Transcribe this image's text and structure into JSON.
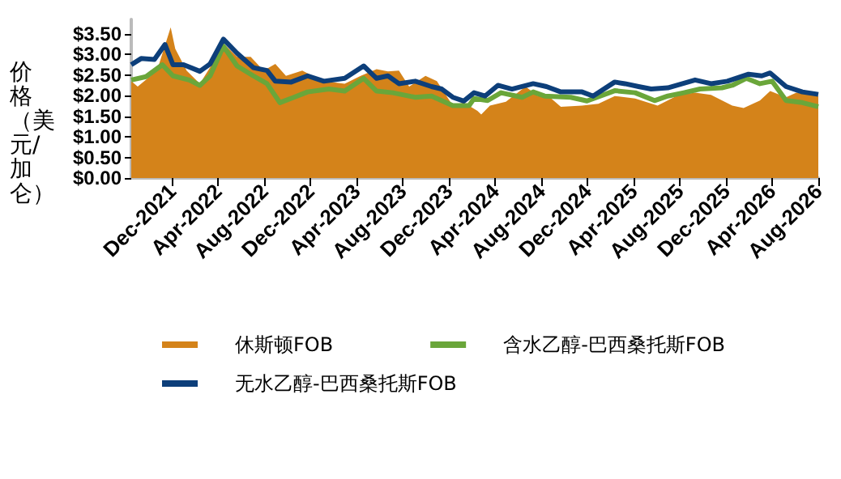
{
  "chart_data": {
    "type": "line",
    "ylabel": "价格（美元/加仑）",
    "xlim": [
      "2021-08-15",
      "2026-08-01"
    ],
    "ylim": [
      0,
      3.85
    ],
    "yticks": [
      {
        "value": 0,
        "label": "$0.00"
      },
      {
        "value": 0.5,
        "label": "$0.50"
      },
      {
        "value": 1,
        "label": "$1.00"
      },
      {
        "value": 1.5,
        "label": "$1.50"
      },
      {
        "value": 2,
        "label": "$2.00"
      },
      {
        "value": 2.5,
        "label": "$2.50"
      },
      {
        "value": 3,
        "label": "$3.00"
      },
      {
        "value": 3.5,
        "label": "$3.50"
      }
    ],
    "xticks": [
      {
        "value": "2021-12-01",
        "label": "Dec-2021"
      },
      {
        "value": "2022-04-01",
        "label": "Apr-2022"
      },
      {
        "value": "2022-08-01",
        "label": "Aug-2022"
      },
      {
        "value": "2022-12-01",
        "label": "Dec-2022"
      },
      {
        "value": "2023-04-01",
        "label": "Apr-2023"
      },
      {
        "value": "2023-08-01",
        "label": "Aug-2023"
      },
      {
        "value": "2023-12-01",
        "label": "Dec-2023"
      },
      {
        "value": "2024-04-01",
        "label": "Apr-2024"
      },
      {
        "value": "2024-08-01",
        "label": "Aug-2024"
      },
      {
        "value": "2024-12-01",
        "label": "Dec-2024"
      },
      {
        "value": "2025-04-01",
        "label": "Apr-2025"
      },
      {
        "value": "2025-08-01",
        "label": "Aug-2025"
      },
      {
        "value": "2025-12-01",
        "label": "Dec-2025"
      },
      {
        "value": "2026-04-01",
        "label": "Apr-2026"
      },
      {
        "value": "2026-08-01",
        "label": "Aug-2026"
      }
    ],
    "grid": false,
    "legend": "bottom",
    "marker": "none",
    "line_style": "solid",
    "series": [
      {
        "name": "休斯顿FOB",
        "type": "area",
        "color": "#d4831a",
        "x": [
          "2021-08-15",
          "2021-09-01",
          "2021-10-22",
          "2021-11-27",
          "2021-12-09",
          "2022-01-08",
          "2022-02-12",
          "2022-03-24",
          "2022-04-15",
          "2022-05-21",
          "2022-06-26",
          "2022-07-30",
          "2022-08-30",
          "2022-09-27",
          "2022-11-09",
          "2022-12-06",
          "2023-01-05",
          "2023-03-01",
          "2023-04-12",
          "2023-05-24",
          "2023-06-23",
          "2023-07-22",
          "2023-08-18",
          "2023-09-30",
          "2023-10-30",
          "2023-12-11",
          "2024-01-09",
          "2024-02-14",
          "2024-02-24",
          "2024-03-18",
          "2024-04-29",
          "2024-06-20",
          "2024-07-23",
          "2024-08-23",
          "2024-09-21",
          "2024-11-16",
          "2024-12-29",
          "2025-02-10",
          "2025-04-05",
          "2025-06-03",
          "2025-07-29",
          "2025-09-10",
          "2025-10-22",
          "2025-12-17",
          "2026-01-16",
          "2026-02-28",
          "2026-03-27",
          "2026-05-08",
          "2026-06-04",
          "2026-08-01"
        ],
        "values": [
          2.35,
          2.22,
          2.61,
          3.66,
          3.14,
          2.61,
          2.29,
          2.88,
          3.27,
          2.94,
          2.94,
          2.61,
          2.77,
          2.48,
          2.61,
          2.48,
          2.35,
          2.29,
          2.48,
          2.64,
          2.59,
          2.61,
          2.22,
          2.48,
          2.35,
          1.76,
          1.83,
          1.63,
          1.54,
          1.76,
          1.85,
          2.22,
          1.99,
          1.96,
          1.73,
          1.76,
          1.8,
          1.99,
          1.93,
          1.76,
          2.02,
          2.07,
          2.02,
          1.76,
          1.7,
          1.88,
          2.11,
          1.96,
          2.07,
          1.99
        ]
      },
      {
        "name": "含水乙醇-巴西桑托斯FOB",
        "color": "#6aa63a",
        "x": [
          "2021-08-15",
          "2021-09-23",
          "2021-11-05",
          "2021-12-03",
          "2022-01-15",
          "2022-02-12",
          "2022-03-11",
          "2022-04-15",
          "2022-05-21",
          "2022-07-03",
          "2022-08-08",
          "2022-09-11",
          "2022-10-18",
          "2022-11-23",
          "2023-01-18",
          "2023-03-01",
          "2023-04-20",
          "2023-05-24",
          "2023-07-06",
          "2023-09-03",
          "2023-10-16",
          "2023-12-11",
          "2024-01-23",
          "2024-02-05",
          "2024-03-12",
          "2024-04-16",
          "2024-06-11",
          "2024-07-10",
          "2024-08-09",
          "2024-10-17",
          "2024-11-29",
          "2025-02-10",
          "2025-04-05",
          "2025-05-26",
          "2025-06-30",
          "2025-08-11",
          "2025-09-23",
          "2025-11-20",
          "2025-12-17",
          "2026-01-23",
          "2026-02-28",
          "2026-04-01",
          "2026-05-08",
          "2026-06-20",
          "2026-08-01"
        ],
        "values": [
          2.38,
          2.46,
          2.75,
          2.48,
          2.38,
          2.25,
          2.48,
          3.2,
          2.72,
          2.48,
          2.29,
          1.83,
          1.96,
          2.09,
          2.16,
          2.11,
          2.42,
          2.11,
          2.07,
          1.96,
          1.99,
          1.76,
          1.76,
          1.93,
          1.88,
          2.07,
          1.96,
          2.09,
          1.99,
          1.96,
          1.87,
          2.12,
          2.07,
          1.88,
          1.99,
          2.07,
          2.16,
          2.19,
          2.25,
          2.42,
          2.29,
          2.35,
          1.88,
          1.83,
          1.73
        ]
      },
      {
        "name": "无水乙醇-巴西桑托斯FOB",
        "color": "#0d3f7a",
        "x": [
          "2021-08-15",
          "2021-09-10",
          "2021-10-15",
          "2021-11-12",
          "2021-12-03",
          "2021-12-31",
          "2022-02-12",
          "2022-03-11",
          "2022-04-15",
          "2022-05-21",
          "2022-07-03",
          "2022-08-08",
          "2022-08-30",
          "2022-10-11",
          "2022-11-23",
          "2023-01-05",
          "2023-03-01",
          "2023-04-20",
          "2023-05-24",
          "2023-06-23",
          "2023-07-22",
          "2023-09-03",
          "2023-10-16",
          "2023-11-12",
          "2023-12-11",
          "2024-01-09",
          "2024-02-05",
          "2024-03-05",
          "2024-04-08",
          "2024-05-15",
          "2024-07-10",
          "2024-08-14",
          "2024-09-21",
          "2024-11-16",
          "2024-12-15",
          "2025-02-10",
          "2025-03-09",
          "2025-04-14",
          "2025-05-17",
          "2025-06-30",
          "2025-09-10",
          "2025-10-22",
          "2025-12-04",
          "2026-01-29",
          "2026-03-05",
          "2026-03-27",
          "2026-05-08",
          "2026-06-20",
          "2026-08-01"
        ],
        "values": [
          2.75,
          2.9,
          2.88,
          3.24,
          2.75,
          2.75,
          2.59,
          2.77,
          3.37,
          3.03,
          2.68,
          2.61,
          2.35,
          2.33,
          2.48,
          2.35,
          2.42,
          2.72,
          2.42,
          2.48,
          2.29,
          2.35,
          2.22,
          2.16,
          1.96,
          1.87,
          2.07,
          1.99,
          2.25,
          2.16,
          2.29,
          2.22,
          2.09,
          2.09,
          1.99,
          2.33,
          2.29,
          2.22,
          2.16,
          2.19,
          2.38,
          2.29,
          2.35,
          2.52,
          2.48,
          2.55,
          2.22,
          2.09,
          2.03
        ]
      }
    ]
  }
}
